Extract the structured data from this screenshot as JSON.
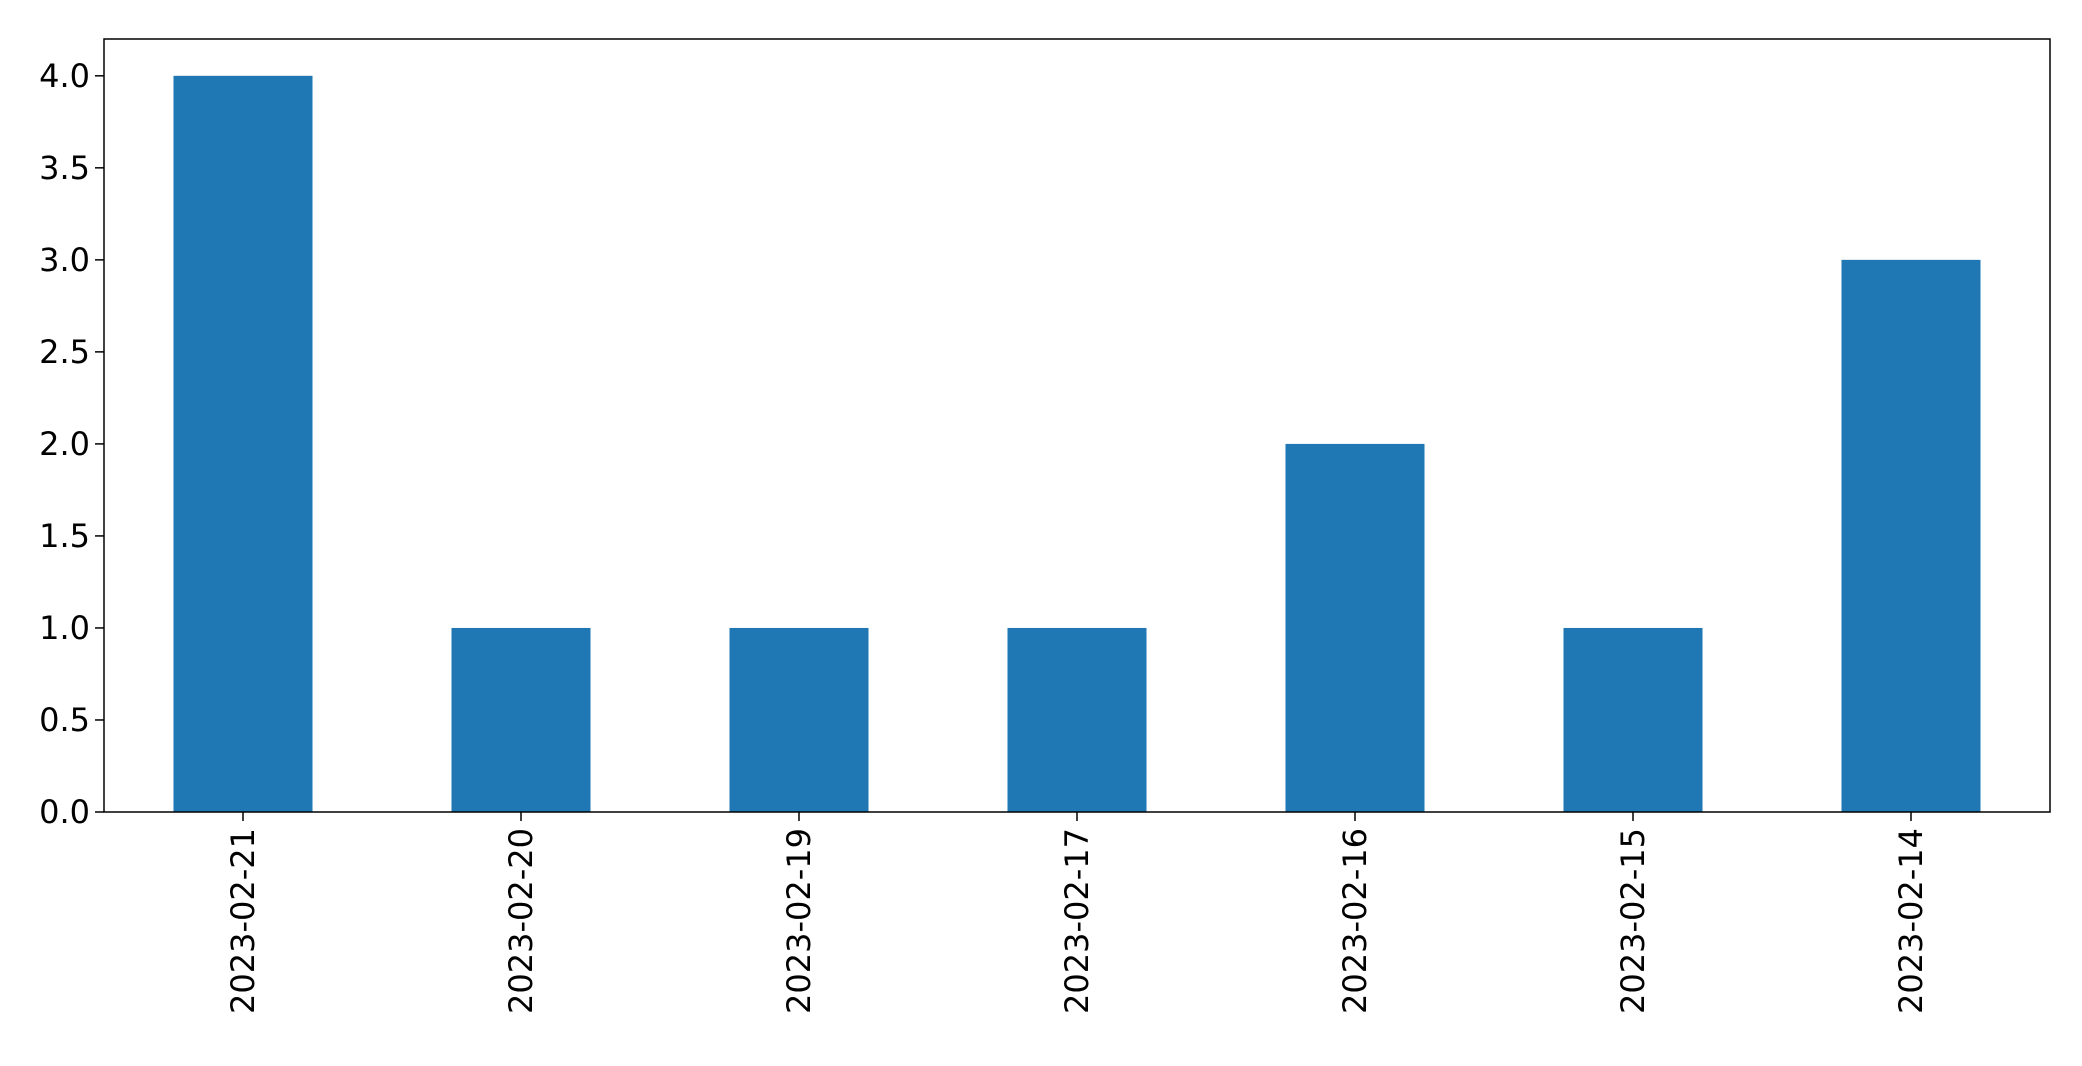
{
  "chart_data": {
    "type": "bar",
    "title": "",
    "xlabel": "",
    "ylabel": "",
    "categories": [
      "2023-02-21",
      "2023-02-20",
      "2023-02-19",
      "2023-02-17",
      "2023-02-16",
      "2023-02-15",
      "2023-02-14"
    ],
    "values": [
      4,
      1,
      1,
      1,
      2,
      1,
      3
    ],
    "ylim": [
      0,
      4.2
    ],
    "yticks": [
      "0.0",
      "0.5",
      "1.0",
      "1.5",
      "2.0",
      "2.5",
      "3.0",
      "3.5",
      "4.0"
    ],
    "grid": false,
    "legend": "none",
    "bar_color": "#1f77b4",
    "axis_color": "#000000"
  }
}
